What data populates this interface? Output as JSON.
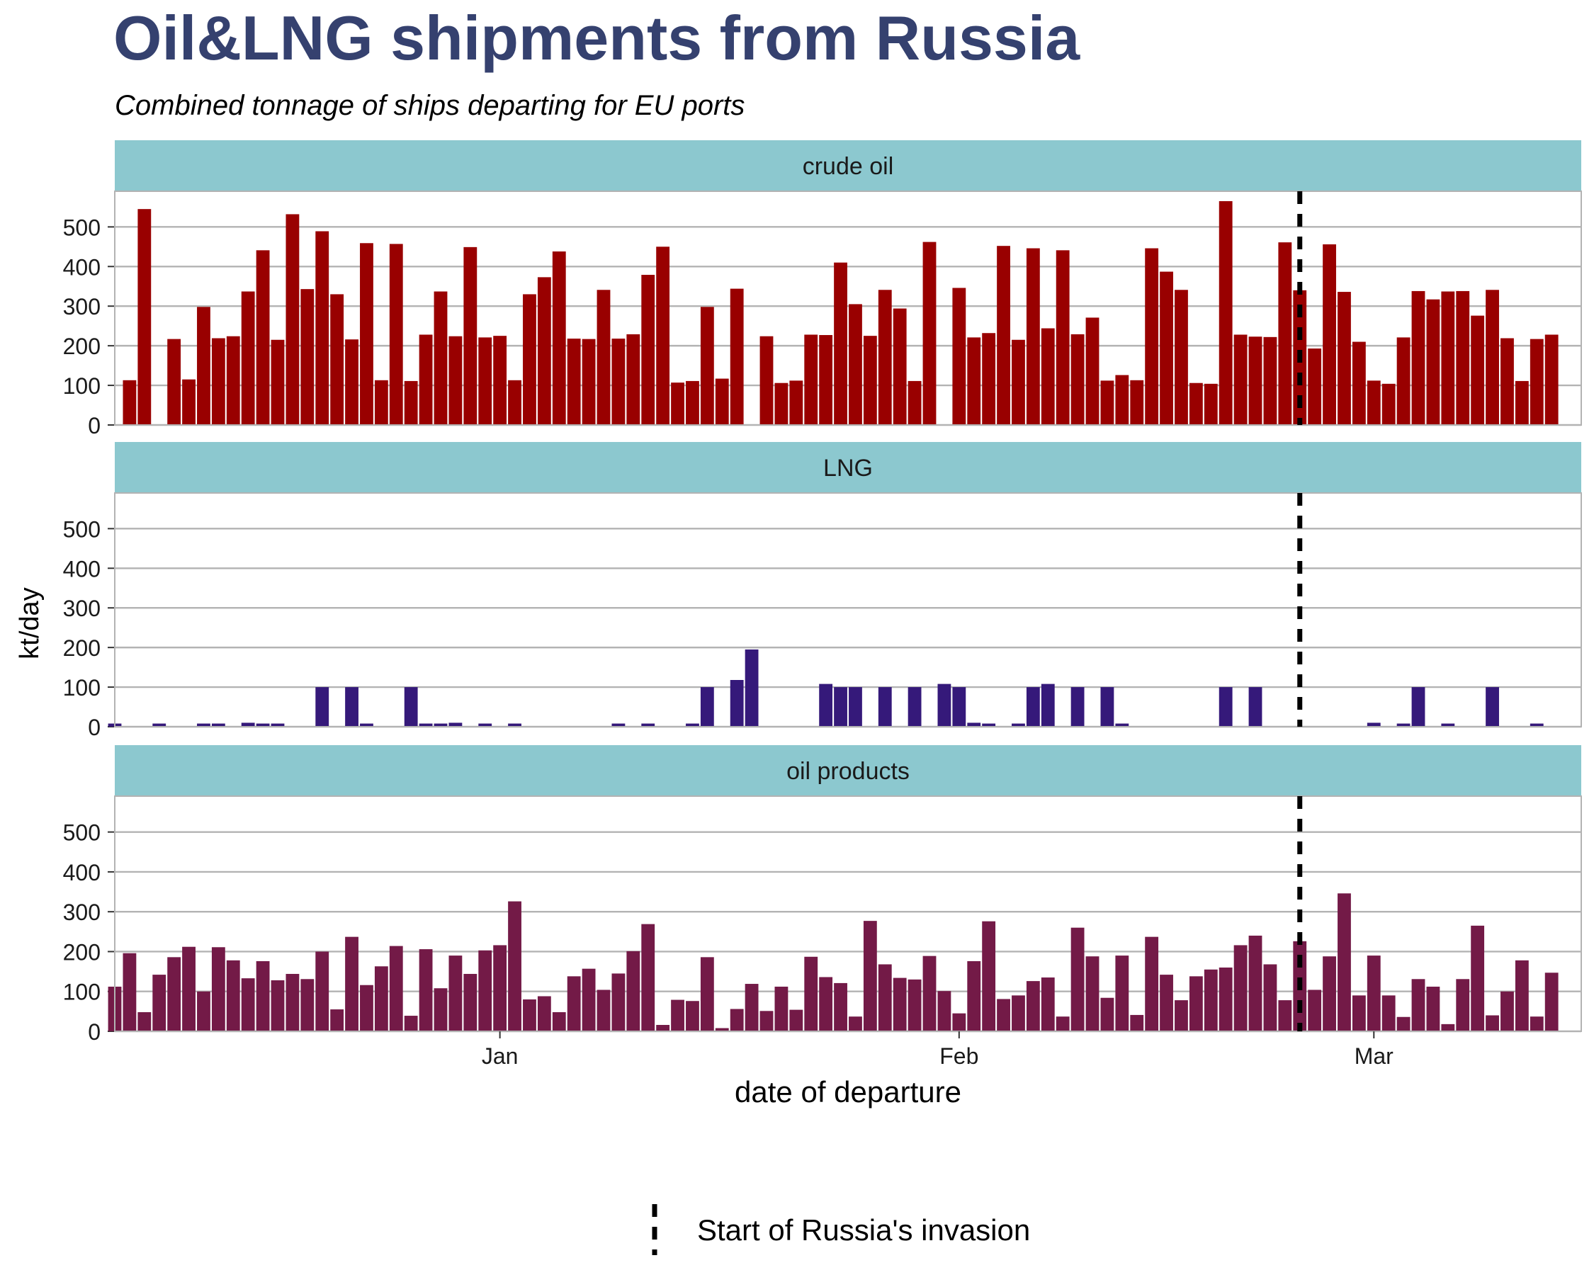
{
  "chart_data": {
    "type": "bar",
    "title": "Oil&LNG shipments from Russia",
    "subtitle": "Combined tonnage of ships departing for EU ports",
    "xlabel": "date of departure",
    "ylabel": "kt/day",
    "ylim": [
      0,
      590
    ],
    "yticks": [
      0,
      100,
      200,
      300,
      400,
      500
    ],
    "xlim": [
      "2021-12-06",
      "2022-03-15"
    ],
    "xticks": [
      {
        "date": "2022-01-01",
        "label": "Jan"
      },
      {
        "date": "2022-02-01",
        "label": "Feb"
      },
      {
        "date": "2022-03-01",
        "label": "Mar"
      }
    ],
    "start_date": "2021-12-06",
    "invasion_date": "2022-02-24",
    "invasion_label": "Start of Russia's invasion",
    "grid": true,
    "legend_position": "bottom",
    "colors": {
      "crude oil": "#990000",
      "LNG": "#35197a",
      "oil products": "#731a47",
      "strip": "#8cc8cf",
      "title": "#35416f",
      "grid": "#b3b3b3",
      "invasion_line": "#000000"
    },
    "series": [
      {
        "name": "crude oil",
        "values": [
          0,
          113,
          545,
          0,
          217,
          115,
          298,
          219,
          224,
          337,
          441,
          215,
          532,
          343,
          489,
          330,
          216,
          459,
          113,
          457,
          111,
          228,
          337,
          224,
          449,
          221,
          225,
          113,
          330,
          373,
          438,
          218,
          217,
          341,
          218,
          229,
          379,
          450,
          107,
          111,
          298,
          117,
          344,
          0,
          224,
          106,
          112,
          228,
          227,
          410,
          305,
          225,
          341,
          294,
          111,
          462,
          0,
          346,
          221,
          232,
          452,
          215,
          446,
          244,
          441,
          229,
          271,
          112,
          126,
          113,
          446,
          387,
          341,
          106,
          104,
          565,
          228,
          223,
          222,
          461,
          340,
          193,
          456,
          336,
          210,
          112,
          104,
          221,
          338,
          317,
          337,
          338,
          276,
          341,
          219,
          111,
          217,
          228
        ]
      },
      {
        "name": "LNG",
        "values": [
          8,
          0,
          0,
          8,
          0,
          0,
          8,
          8,
          0,
          10,
          8,
          8,
          0,
          0,
          100,
          0,
          100,
          8,
          0,
          0,
          100,
          8,
          8,
          10,
          0,
          8,
          0,
          8,
          0,
          0,
          0,
          0,
          0,
          0,
          8,
          0,
          8,
          0,
          0,
          8,
          100,
          0,
          118,
          195,
          0,
          0,
          0,
          0,
          108,
          100,
          100,
          0,
          100,
          0,
          100,
          0,
          108,
          100,
          10,
          8,
          0,
          8,
          100,
          108,
          0,
          100,
          0,
          100,
          8,
          0,
          0,
          0,
          0,
          0,
          0,
          100,
          0,
          100,
          0,
          0,
          0,
          0,
          0,
          0,
          0,
          10,
          0,
          8,
          100,
          0,
          8,
          0,
          0,
          100,
          0,
          0,
          8,
          0
        ]
      },
      {
        "name": "oil products",
        "values": [
          112,
          196,
          48,
          142,
          186,
          212,
          100,
          211,
          178,
          133,
          176,
          128,
          144,
          131,
          200,
          55,
          237,
          116,
          163,
          214,
          39,
          206,
          108,
          190,
          144,
          203,
          216,
          326,
          80,
          88,
          48,
          138,
          157,
          104,
          145,
          201,
          269,
          16,
          79,
          76,
          186,
          8,
          56,
          119,
          51,
          112,
          54,
          187,
          136,
          121,
          37,
          277,
          168,
          134,
          130,
          189,
          101,
          45,
          176,
          276,
          81,
          90,
          126,
          135,
          37,
          260,
          188,
          84,
          190,
          41,
          237,
          142,
          78,
          138,
          155,
          160,
          216,
          240,
          168,
          78,
          226,
          104,
          188,
          346,
          90,
          190,
          90,
          36,
          131,
          112,
          18,
          131,
          265,
          40,
          100,
          178,
          37,
          147
        ]
      }
    ]
  }
}
